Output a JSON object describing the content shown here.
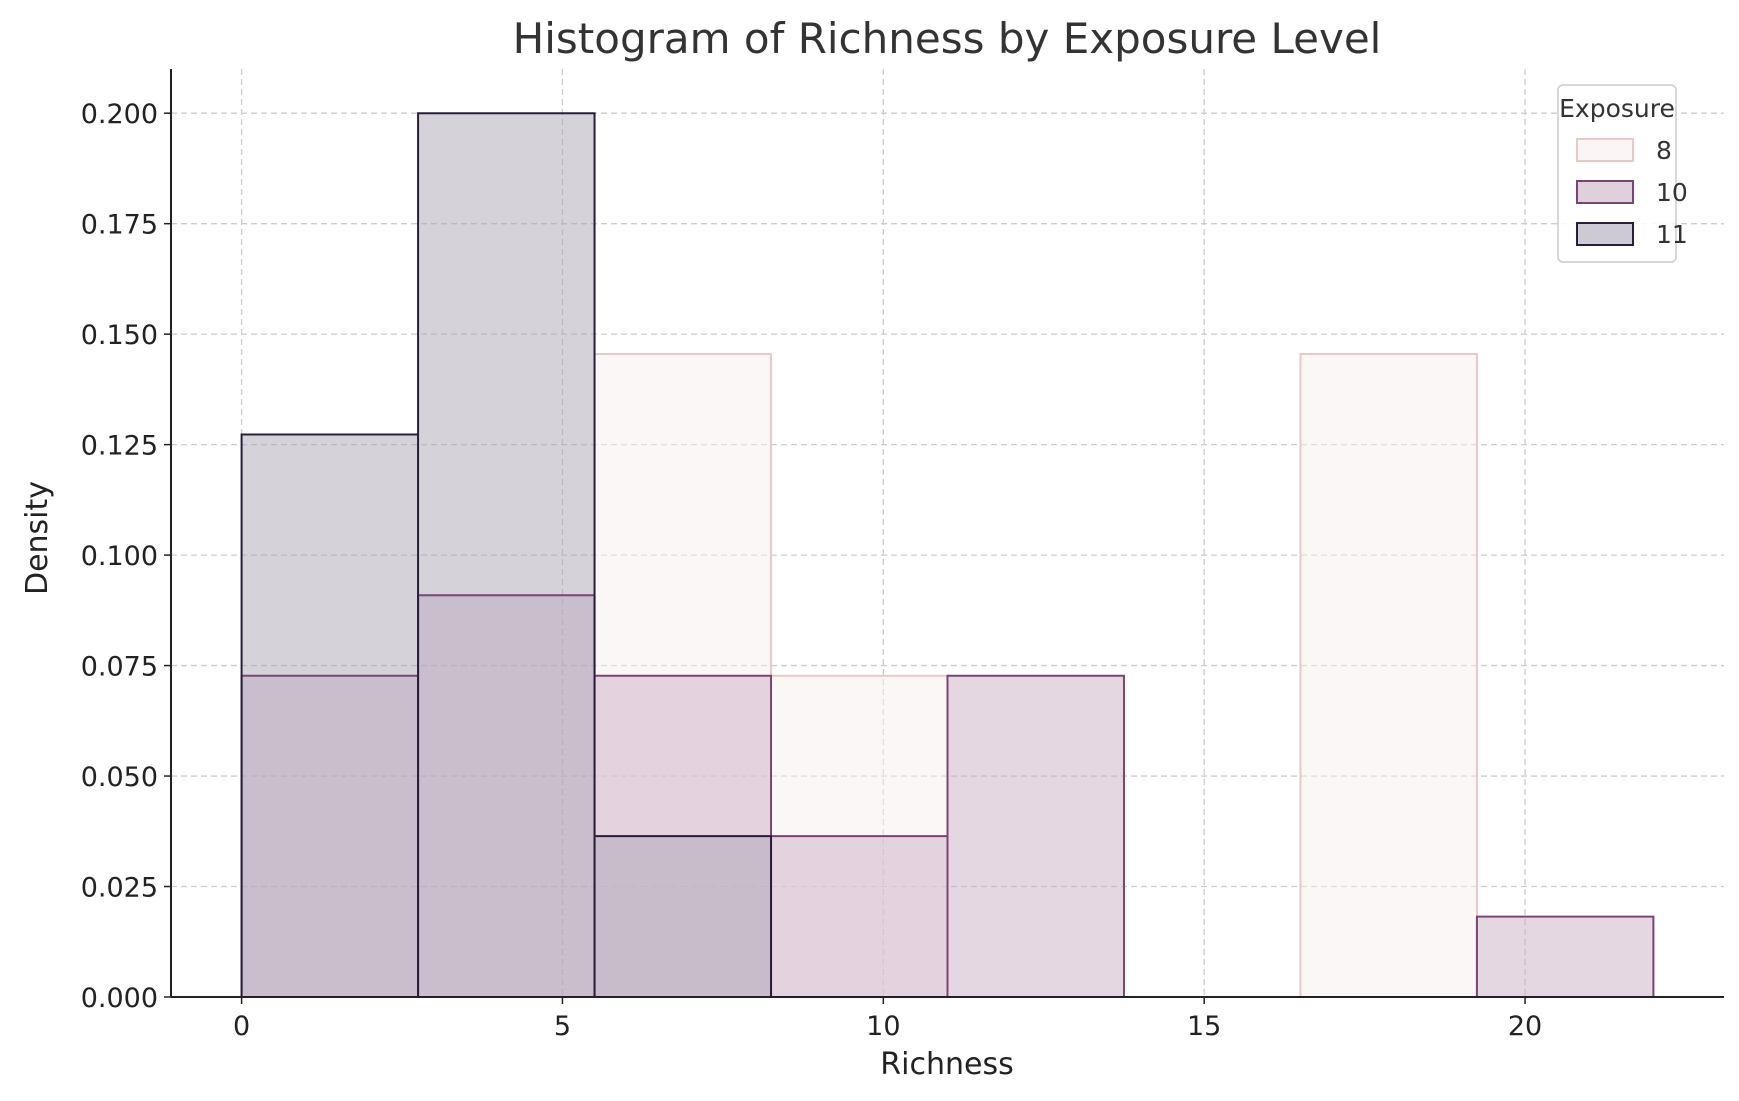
{
  "chart_data": {
    "type": "histogram",
    "title": "Histogram of Richness by Exposure Level",
    "xlabel": "Richness",
    "ylabel": "Density",
    "xlim": [
      -1.1,
      23.1
    ],
    "ylim": [
      0,
      0.21
    ],
    "xticks": [
      0,
      5,
      10,
      15,
      20
    ],
    "xtick_labels": [
      "0",
      "5",
      "10",
      "15",
      "20"
    ],
    "yticks": [
      0,
      0.025,
      0.05,
      0.075,
      0.1,
      0.125,
      0.15,
      0.175,
      0.2
    ],
    "ytick_labels": [
      "0.000",
      "0.025",
      "0.050",
      "0.075",
      "0.100",
      "0.125",
      "0.150",
      "0.175",
      "0.200"
    ],
    "grid": true,
    "bin_edges": [
      0,
      2.75,
      5.5,
      8.25,
      11,
      13.75,
      16.5,
      19.25,
      22
    ],
    "legend": {
      "title": "Exposure",
      "position": "top-right"
    },
    "series": [
      {
        "name": "8",
        "color": "#eac8c3",
        "fill": "#f9f0ef",
        "values": [
          0,
          0,
          0.1455,
          0.0727,
          0,
          0,
          0.1455,
          0
        ]
      },
      {
        "name": "10",
        "color": "#7a4575",
        "fill": "#ccb0c6",
        "values": [
          0.0727,
          0.0909,
          0.0727,
          0.0364,
          0.0727,
          0,
          0,
          0.0182
        ]
      },
      {
        "name": "11",
        "color": "#2a1d3c",
        "fill": "#aca6b6",
        "values": [
          0.1273,
          0.2,
          0.0364,
          0,
          0,
          0,
          0,
          0
        ]
      }
    ]
  }
}
